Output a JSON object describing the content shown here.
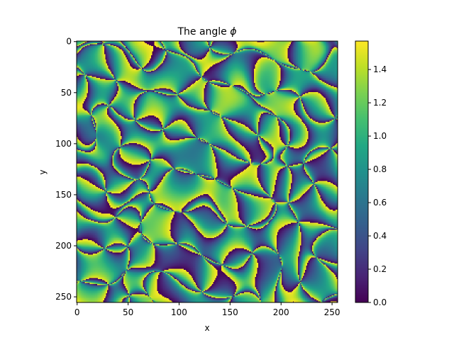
{
  "chart_data": {
    "type": "heatmap",
    "title": "The angle",
    "title_symbol": "ϕ",
    "xlabel": "x",
    "ylabel": "y",
    "xlim": [
      0,
      255
    ],
    "ylim": [
      255,
      0
    ],
    "xticks": [
      0,
      50,
      100,
      150,
      200,
      250
    ],
    "yticks": [
      0,
      50,
      100,
      150,
      200,
      250
    ],
    "grid_size": [
      256,
      256
    ],
    "colormap": "viridis",
    "colorbar": {
      "min": 0.0,
      "max": 1.5708,
      "ticks": [
        "0.0",
        "0.2",
        "0.4",
        "0.6",
        "0.8",
        "1.0",
        "1.2",
        "1.4"
      ]
    },
    "colors": {
      "low": "#440154",
      "mid": "#21918c",
      "high": "#fde725"
    }
  }
}
